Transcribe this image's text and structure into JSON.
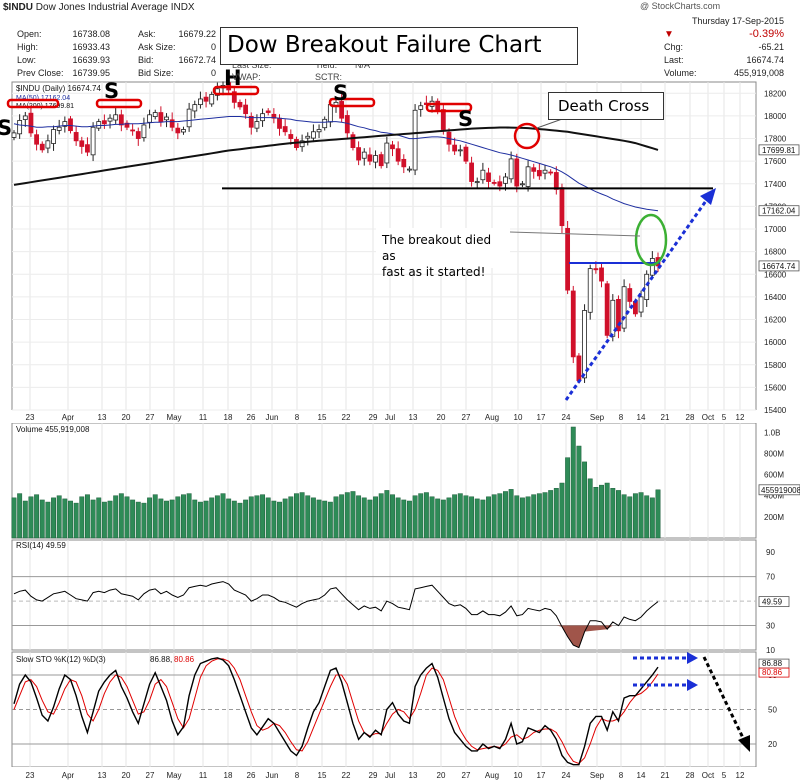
{
  "header": {
    "symbol": "$INDU",
    "name": "Dow Jones Industrial Average",
    "exchange": "INDX",
    "date": "Thursday  17-Sep-2015",
    "copyright": "@ StockCharts.com",
    "pct_change": "-0.39%",
    "chg_label": "Chg:",
    "chg_value": "-65.21",
    "last_label": "Last:",
    "last_value": "16674.74",
    "volume_label": "Volume:",
    "volume_value": "455,919,008",
    "open_label": "Open:",
    "open_value": "16738.08",
    "high_label": "High:",
    "high_value": "16933.43",
    "low_label": "Low:",
    "low_value": "16639.93",
    "prev_label": "Prev Close:",
    "prev_value": "16739.95",
    "ask_label": "Ask:",
    "ask_value": "16679.22",
    "asksize_label": "Ask Size:",
    "asksize_value": "0",
    "bid_label": "Bid:",
    "bid_value": "16672.74",
    "bidsize_label": "Bid Size:",
    "bidsize_value": "0",
    "lastsize_label": "Last Size:",
    "vwap_label": "VWAP:",
    "yield_label": "Yield:",
    "yield_value": "N/A",
    "sctr_label": "SCTR:"
  },
  "annotations": {
    "title": "Dow Breakout Failure Chart",
    "death_cross": "Death Cross",
    "breakout_line1": "The breakout died as",
    "breakout_line2": "fast as it started!",
    "pattern_labels": [
      "S",
      "S",
      "H",
      "S",
      "S"
    ]
  },
  "colors": {
    "up_candle": "#ffffff",
    "down_candle": "#d0102a",
    "ma50": "#1f2fa0",
    "ma200": "#111111",
    "volume": "#2e8b57",
    "rsi": "#000000",
    "sto_k": "#000000",
    "sto_d": "#e00000",
    "annotation_red": "#e00000",
    "arrow_blue": "#1a2fd6",
    "ring_green": "#3cb034"
  },
  "chart_data": [
    {
      "type": "candlestick",
      "title": "$INDU (Daily) 16674.74",
      "legend": [
        "$INDU (Daily) 16674.74",
        "MA(50) 17162.04",
        "MA(200) 17699.81"
      ],
      "ylim": [
        15400,
        18300
      ],
      "yticks": [
        15400,
        15600,
        15800,
        16000,
        16200,
        16400,
        16600,
        16800,
        17000,
        17200,
        17400,
        17600,
        17800,
        18000,
        18200
      ],
      "y_axis_labels": [
        "18200",
        "18000",
        "17800",
        "17600",
        "17400",
        "17200",
        "17000",
        "16800",
        "16600",
        "16400",
        "16200",
        "16000",
        "15800",
        "15600",
        "15400"
      ],
      "price_tags": [
        "17699.81",
        "17162.04",
        "16674.74"
      ],
      "x_labels": [
        "23",
        "Apr",
        "13",
        "20",
        "27",
        "May",
        "11",
        "18",
        "26",
        "Jun",
        "8",
        "15",
        "22",
        "29",
        "Jul",
        "13",
        "20",
        "27",
        "Aug",
        "10",
        "17",
        "24",
        "Sep",
        "8",
        "14",
        "21",
        "28",
        "Oct",
        "5",
        "12"
      ],
      "closes": [
        17850,
        17960,
        18000,
        17850,
        17750,
        17700,
        17780,
        17880,
        17900,
        17950,
        17870,
        17780,
        17730,
        17680,
        17900,
        17950,
        17930,
        17980,
        18010,
        17920,
        17900,
        17870,
        17800,
        17920,
        18010,
        18030,
        17950,
        17990,
        17900,
        17850,
        17880,
        18060,
        18100,
        18150,
        18130,
        18190,
        18240,
        18270,
        18230,
        18120,
        18080,
        18020,
        17900,
        17950,
        18020,
        18030,
        17980,
        17890,
        17860,
        17800,
        17720,
        17780,
        17820,
        17860,
        17880,
        17970,
        18100,
        18120,
        17980,
        17850,
        17720,
        17610,
        17680,
        17600,
        17650,
        17560,
        17760,
        17710,
        17600,
        17550,
        17530,
        18050,
        18090,
        18100,
        18130,
        18040,
        17880,
        17750,
        17690,
        17700,
        17600,
        17420,
        17420,
        17520,
        17420,
        17410,
        17380,
        17460,
        17620,
        17380,
        17400,
        17550,
        17510,
        17470,
        17520,
        17500,
        17350,
        17030,
        16460,
        15870,
        15660,
        16280,
        16650,
        16640,
        16540,
        16060,
        16370,
        16100,
        16490,
        16360,
        16250,
        16400,
        16600,
        16740,
        16674
      ],
      "ma50": [
        17930,
        17920,
        17915,
        17910,
        17900,
        17900,
        17905,
        17905,
        17910,
        17915,
        17915,
        17910,
        17905,
        17905,
        17910,
        17915,
        17915,
        17920,
        17925,
        17925,
        17930,
        17930,
        17930,
        17935,
        17940,
        17945,
        17945,
        17950,
        17950,
        17950,
        17955,
        17960,
        17965,
        17970,
        17975,
        17980,
        17985,
        17990,
        17995,
        17995,
        17995,
        17990,
        17985,
        17985,
        17985,
        17985,
        17985,
        17980,
        17975,
        17970,
        17960,
        17955,
        17950,
        17945,
        17945,
        17945,
        17950,
        17950,
        17945,
        17935,
        17920,
        17905,
        17895,
        17880,
        17870,
        17855,
        17850,
        17840,
        17830,
        17815,
        17800,
        17800,
        17805,
        17810,
        17815,
        17815,
        17810,
        17800,
        17790,
        17780,
        17765,
        17750,
        17735,
        17720,
        17705,
        17690,
        17675,
        17665,
        17655,
        17640,
        17625,
        17610,
        17595,
        17580,
        17565,
        17550,
        17530,
        17505,
        17475,
        17440,
        17405,
        17380,
        17355,
        17330,
        17310,
        17290,
        17265,
        17245,
        17225,
        17210,
        17195,
        17185,
        17175,
        17168,
        17162
      ],
      "ma200": [
        17390,
        17398,
        17406,
        17414,
        17422,
        17430,
        17438,
        17446,
        17454,
        17462,
        17470,
        17478,
        17486,
        17494,
        17502,
        17510,
        17518,
        17526,
        17534,
        17542,
        17550,
        17558,
        17566,
        17574,
        17582,
        17590,
        17598,
        17606,
        17614,
        17622,
        17630,
        17638,
        17646,
        17654,
        17662,
        17670,
        17678,
        17686,
        17694,
        17700,
        17706,
        17712,
        17718,
        17724,
        17730,
        17736,
        17742,
        17748,
        17754,
        17760,
        17764,
        17768,
        17772,
        17776,
        17780,
        17784,
        17788,
        17792,
        17796,
        17800,
        17804,
        17808,
        17812,
        17816,
        17820,
        17824,
        17828,
        17832,
        17836,
        17840,
        17844,
        17848,
        17852,
        17856,
        17860,
        17864,
        17868,
        17872,
        17876,
        17880,
        17884,
        17888,
        17890,
        17892,
        17894,
        17896,
        17898,
        17898,
        17897,
        17896,
        17894,
        17892,
        17888,
        17884,
        17880,
        17875,
        17870,
        17865,
        17860,
        17852,
        17844,
        17836,
        17828,
        17820,
        17812,
        17804,
        17796,
        17788,
        17780,
        17770,
        17760,
        17745,
        17730,
        17715,
        17700
      ],
      "resistance_line": 17360,
      "breakout_line": 16700
    },
    {
      "type": "bar",
      "title": "Volume 455,919,008",
      "y_axis_labels": [
        "1.0B",
        "800M",
        "600M",
        "400M",
        "200M"
      ],
      "value_tag": "455919008",
      "ylim": [
        0,
        1050
      ],
      "values": [
        380,
        420,
        350,
        390,
        410,
        360,
        340,
        380,
        400,
        370,
        350,
        330,
        390,
        410,
        360,
        380,
        340,
        350,
        400,
        420,
        390,
        360,
        340,
        330,
        380,
        410,
        370,
        350,
        360,
        390,
        410,
        420,
        360,
        340,
        350,
        380,
        400,
        420,
        370,
        350,
        330,
        360,
        390,
        400,
        410,
        380,
        350,
        340,
        370,
        390,
        420,
        430,
        400,
        380,
        360,
        350,
        340,
        390,
        410,
        430,
        440,
        400,
        380,
        360,
        390,
        420,
        450,
        410,
        380,
        360,
        350,
        400,
        420,
        430,
        390,
        370,
        360,
        380,
        410,
        420,
        400,
        390,
        370,
        360,
        390,
        410,
        420,
        440,
        460,
        400,
        380,
        390,
        410,
        420,
        430,
        450,
        470,
        520,
        760,
        1050,
        870,
        720,
        560,
        480,
        500,
        520,
        470,
        450,
        410,
        390,
        420,
        430,
        400,
        380,
        456
      ]
    },
    {
      "type": "line",
      "title": "RSI(14) 49.59",
      "ylim": [
        10,
        100
      ],
      "y_axis_labels": [
        "90",
        "70",
        "50",
        "30",
        "10"
      ],
      "value_tag": "49.59",
      "reference_lines": [
        70,
        30
      ],
      "values": [
        56,
        58,
        59,
        54,
        51,
        50,
        53,
        56,
        57,
        58,
        55,
        52,
        51,
        50,
        57,
        58,
        57,
        59,
        60,
        56,
        55,
        54,
        51,
        56,
        59,
        60,
        56,
        58,
        55,
        53,
        55,
        61,
        62,
        63,
        62,
        64,
        65,
        66,
        64,
        59,
        57,
        55,
        50,
        52,
        55,
        55,
        53,
        50,
        49,
        47,
        45,
        48,
        50,
        51,
        52,
        55,
        60,
        61,
        56,
        51,
        47,
        43,
        46,
        44,
        45,
        42,
        50,
        48,
        45,
        44,
        43,
        60,
        61,
        62,
        63,
        58,
        53,
        48,
        46,
        47,
        44,
        39,
        39,
        42,
        39,
        39,
        38,
        41,
        46,
        38,
        39,
        44,
        43,
        42,
        44,
        43,
        38,
        29,
        21,
        14,
        12,
        25,
        34,
        34,
        33,
        27,
        33,
        30,
        37,
        35,
        34,
        37,
        42,
        46,
        49.59
      ]
    },
    {
      "type": "line",
      "title": "Slow STO %K(12) %D(3) 86.88, 80.86",
      "ylim": [
        0,
        100
      ],
      "y_axis_labels": [
        "80",
        "50",
        "20"
      ],
      "value_tags": [
        "86.88",
        "80.86"
      ],
      "reference_lines": [
        80,
        50,
        20
      ],
      "series": [
        {
          "name": "%K(12)",
          "values": [
            55,
            72,
            80,
            74,
            60,
            45,
            40,
            52,
            68,
            80,
            76,
            62,
            44,
            30,
            48,
            66,
            74,
            80,
            84,
            70,
            60,
            48,
            38,
            55,
            72,
            82,
            70,
            58,
            40,
            28,
            35,
            62,
            80,
            90,
            92,
            94,
            95,
            93,
            88,
            76,
            62,
            48,
            34,
            28,
            35,
            42,
            38,
            30,
            22,
            14,
            10,
            18,
            34,
            48,
            56,
            70,
            84,
            86,
            74,
            56,
            38,
            24,
            30,
            26,
            32,
            28,
            50,
            56,
            46,
            40,
            38,
            70,
            80,
            86,
            90,
            78,
            60,
            42,
            30,
            24,
            18,
            14,
            14,
            20,
            16,
            18,
            16,
            24,
            38,
            20,
            22,
            34,
            32,
            30,
            36,
            32,
            24,
            10,
            4,
            2,
            2,
            18,
            38,
            44,
            44,
            32,
            48,
            40,
            60,
            62,
            62,
            68,
            74,
            80,
            86.88
          ]
        },
        {
          "name": "%D(3)",
          "values": [
            50,
            62,
            74,
            76,
            70,
            58,
            48,
            46,
            56,
            68,
            76,
            74,
            62,
            46,
            40,
            50,
            64,
            74,
            80,
            78,
            70,
            58,
            46,
            48,
            58,
            72,
            76,
            70,
            56,
            42,
            34,
            42,
            60,
            78,
            88,
            92,
            94,
            94,
            92,
            86,
            76,
            62,
            48,
            36,
            32,
            34,
            38,
            36,
            30,
            22,
            15,
            14,
            22,
            34,
            46,
            58,
            70,
            80,
            80,
            72,
            56,
            40,
            30,
            27,
            29,
            29,
            38,
            46,
            50,
            48,
            42,
            50,
            64,
            80,
            86,
            84,
            76,
            60,
            44,
            32,
            24,
            18,
            15,
            16,
            17,
            18,
            17,
            20,
            26,
            28,
            24,
            26,
            30,
            32,
            33,
            33,
            30,
            22,
            12,
            5,
            3,
            8,
            20,
            34,
            42,
            40,
            40,
            42,
            48,
            56,
            62,
            64,
            68,
            74,
            80.86
          ]
        }
      ]
    }
  ]
}
